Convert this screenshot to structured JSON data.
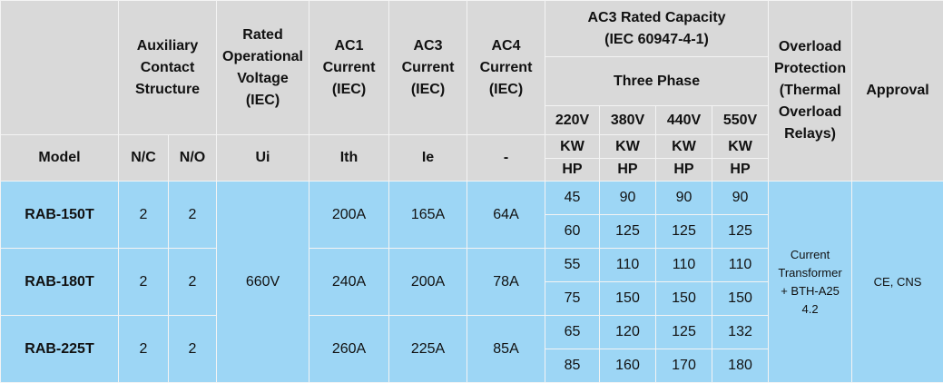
{
  "header": {
    "auxiliary": [
      "Auxiliary",
      "Contact",
      "Structure"
    ],
    "rated_voltage": [
      "Rated",
      "Operational",
      "Voltage",
      "(IEC)"
    ],
    "ac1": [
      "AC1",
      "Current",
      "(IEC)"
    ],
    "ac3": [
      "AC3",
      "Current",
      "(IEC)"
    ],
    "ac4": [
      "AC4",
      "Current",
      "(IEC)"
    ],
    "ac3_capacity": [
      "AC3 Rated Capacity",
      "(IEC 60947-4-1)"
    ],
    "three_phase": "Three Phase",
    "voltages": [
      "220V",
      "380V",
      "440V",
      "550V"
    ],
    "overload": [
      "Overload",
      "Protection",
      "(Thermal",
      "Overload",
      "Relays)"
    ],
    "approval": "Approval",
    "model": "Model",
    "nc": "N/C",
    "no": "N/O",
    "ui": "Ui",
    "ith": "Ith",
    "ie": "Ie",
    "ac4_sub": "-",
    "kw": [
      "KW",
      "KW",
      "KW",
      "KW"
    ],
    "hp": [
      "HP",
      "HP",
      "HP",
      "HP"
    ]
  },
  "table": {
    "ui": "660V",
    "overload": [
      "Current",
      "Transformer",
      "+ BTH-A25",
      "4.2"
    ],
    "approval": "CE, CNS",
    "rows": [
      {
        "model": "RAB-150T",
        "nc": 2,
        "no": 2,
        "ac1": "200A",
        "ac3": "165A",
        "ac4": "64A",
        "kw": [
          45,
          90,
          90,
          90
        ],
        "hp": [
          60,
          125,
          125,
          125
        ]
      },
      {
        "model": "RAB-180T",
        "nc": 2,
        "no": 2,
        "ac1": "240A",
        "ac3": "200A",
        "ac4": "78A",
        "kw": [
          55,
          110,
          110,
          110
        ],
        "hp": [
          75,
          150,
          150,
          150
        ]
      },
      {
        "model": "RAB-225T",
        "nc": 2,
        "no": 2,
        "ac1": "260A",
        "ac3": "225A",
        "ac4": "85A",
        "kw": [
          65,
          120,
          125,
          132
        ],
        "hp": [
          85,
          160,
          170,
          180
        ]
      }
    ]
  }
}
